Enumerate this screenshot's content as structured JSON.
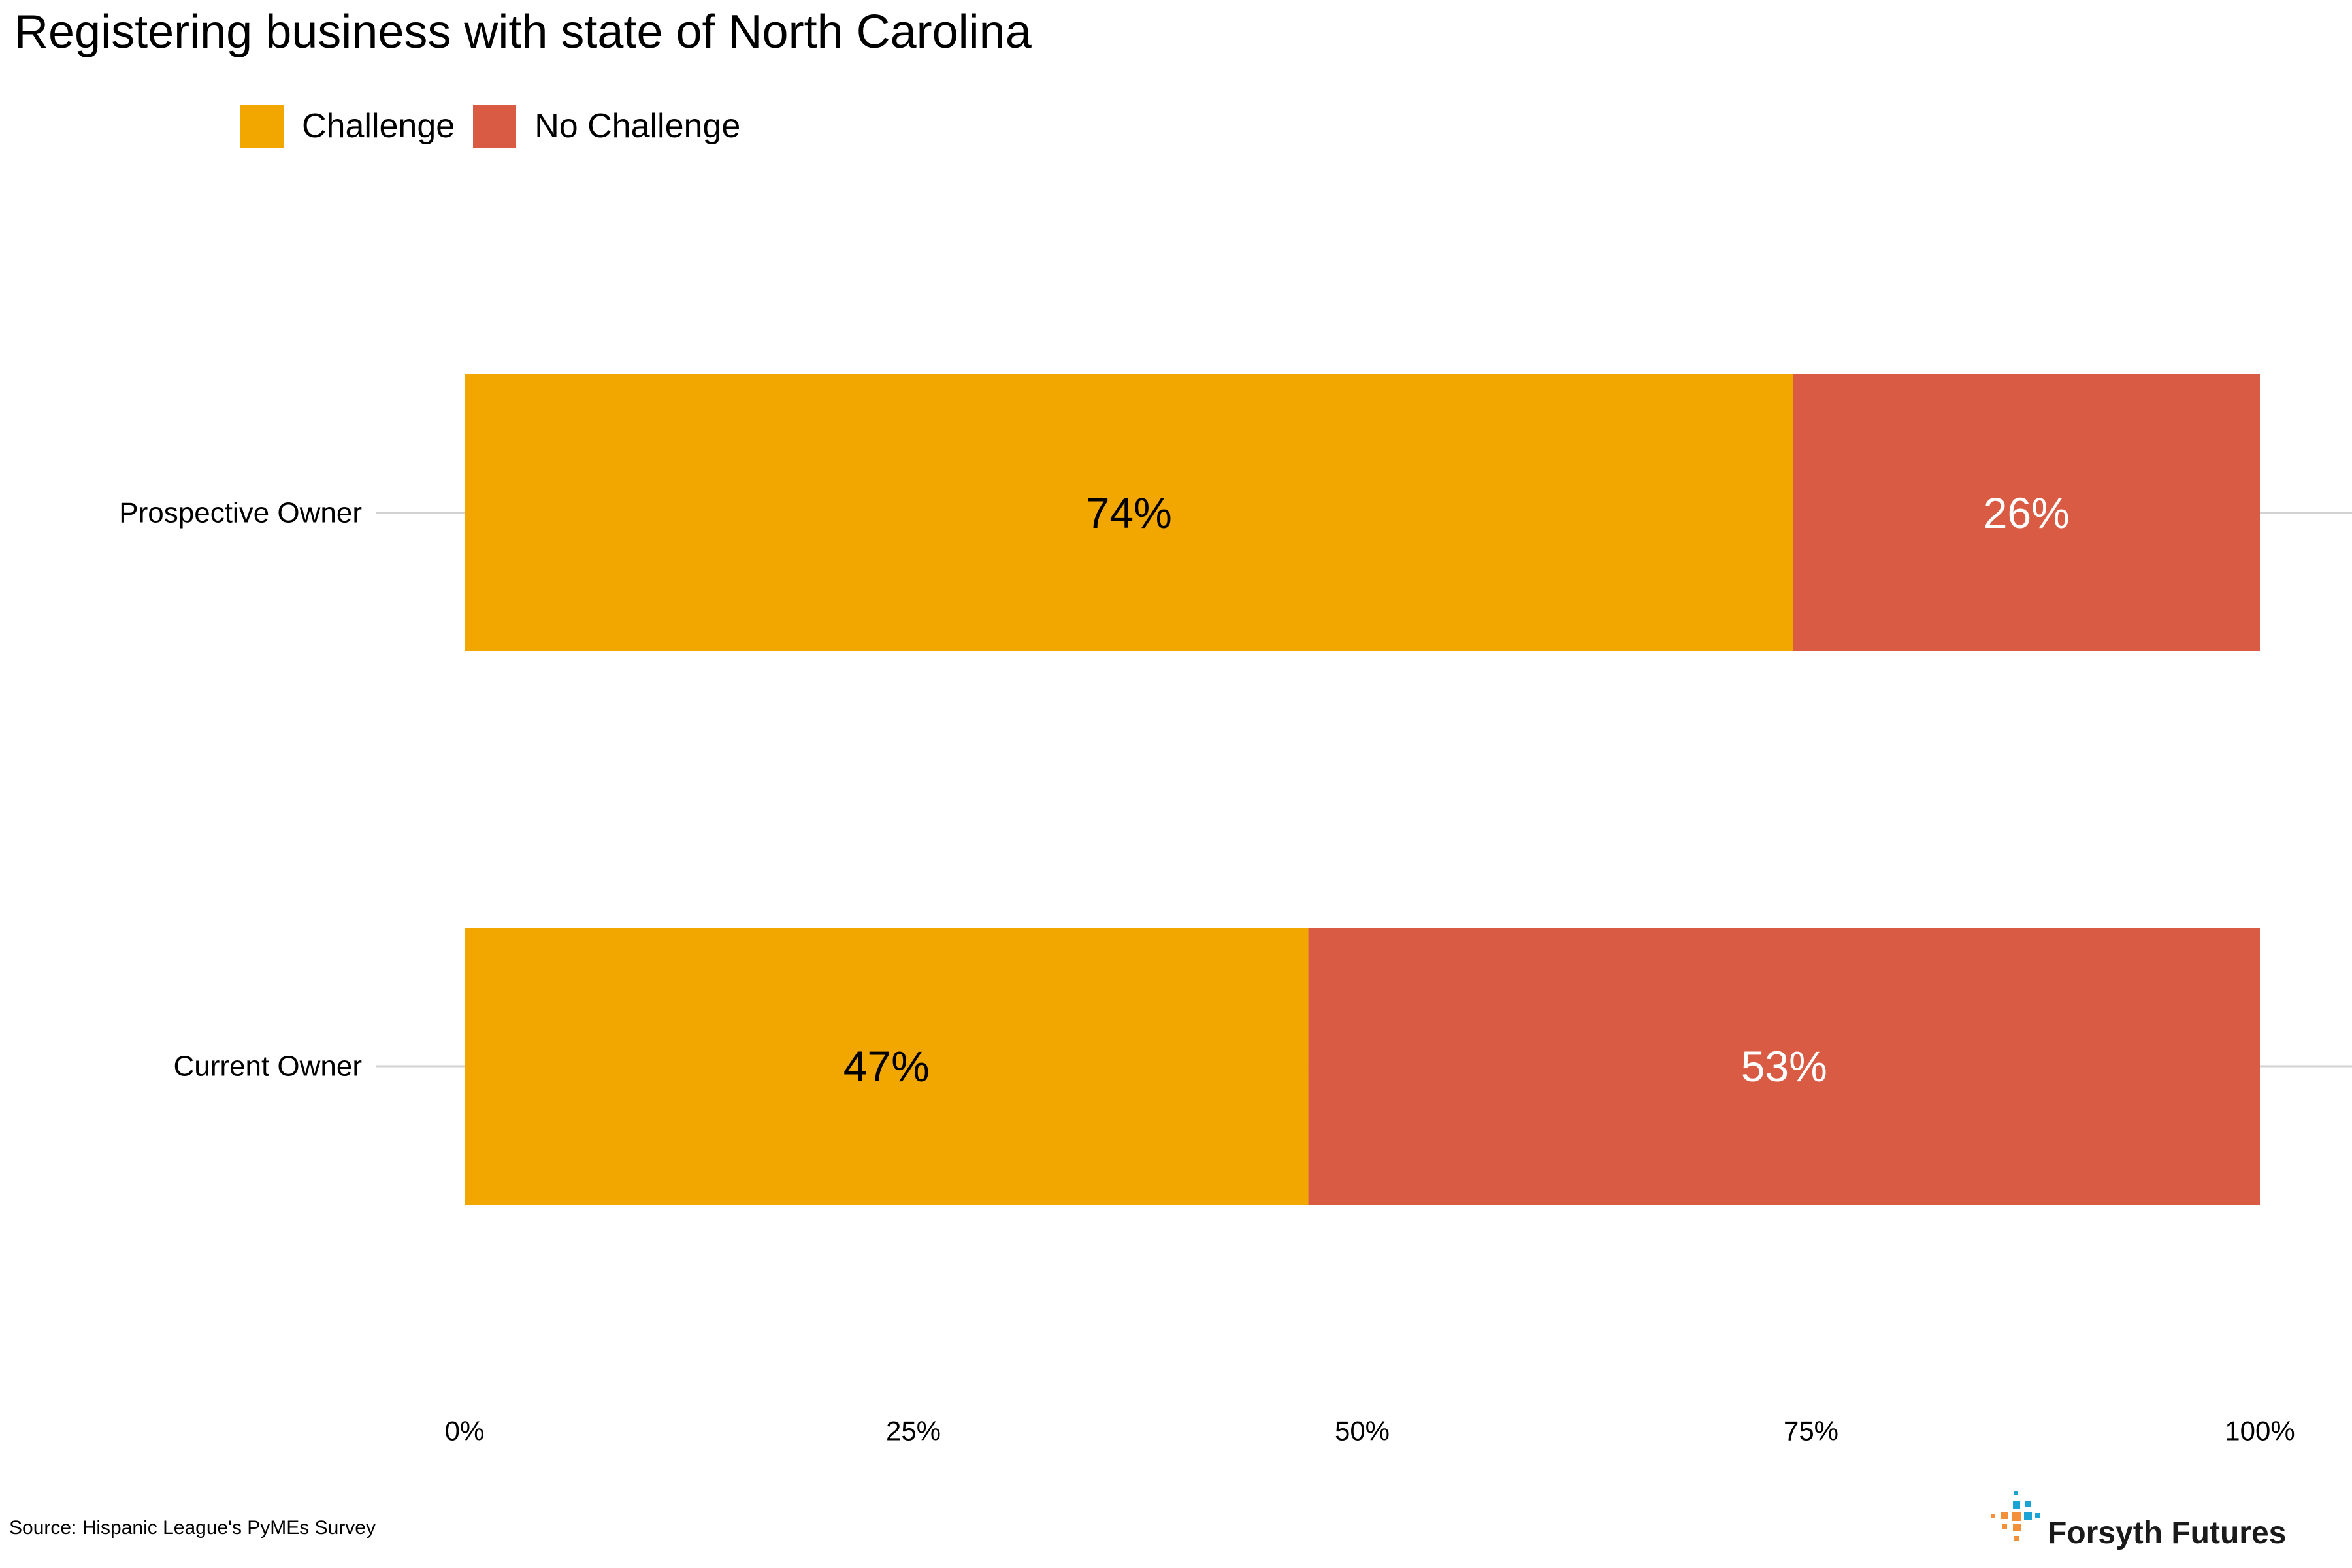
{
  "chart_data": {
    "type": "bar",
    "orientation": "horizontal",
    "stacked": true,
    "title": "Registering business with state of North Carolina",
    "categories": [
      "Prospective Owner",
      "Current Owner"
    ],
    "series": [
      {
        "name": "Challenge",
        "color": "#F2A600",
        "values": [
          74,
          47
        ],
        "labels": [
          "74%",
          "47%"
        ],
        "label_color": "#000000"
      },
      {
        "name": "No Challenge",
        "color": "#D95B43",
        "values": [
          26,
          53
        ],
        "labels": [
          "26%",
          "53%"
        ],
        "label_color": "#ffffff"
      }
    ],
    "xlim": [
      0,
      100
    ],
    "xticks": [
      0,
      25,
      50,
      75,
      100
    ],
    "xtick_labels": [
      "0%",
      "25%",
      "50%",
      "75%",
      "100%"
    ],
    "legend_position": "top-left",
    "grid": "horizontal lines at categories",
    "source": "Source: Hispanic League's PyMEs Survey"
  },
  "brand": {
    "name": "Forsyth Futures",
    "icon": "forsyth-futures-logo-icon",
    "colors": {
      "blue": "#1BA3D6",
      "orange": "#F2913A"
    }
  }
}
